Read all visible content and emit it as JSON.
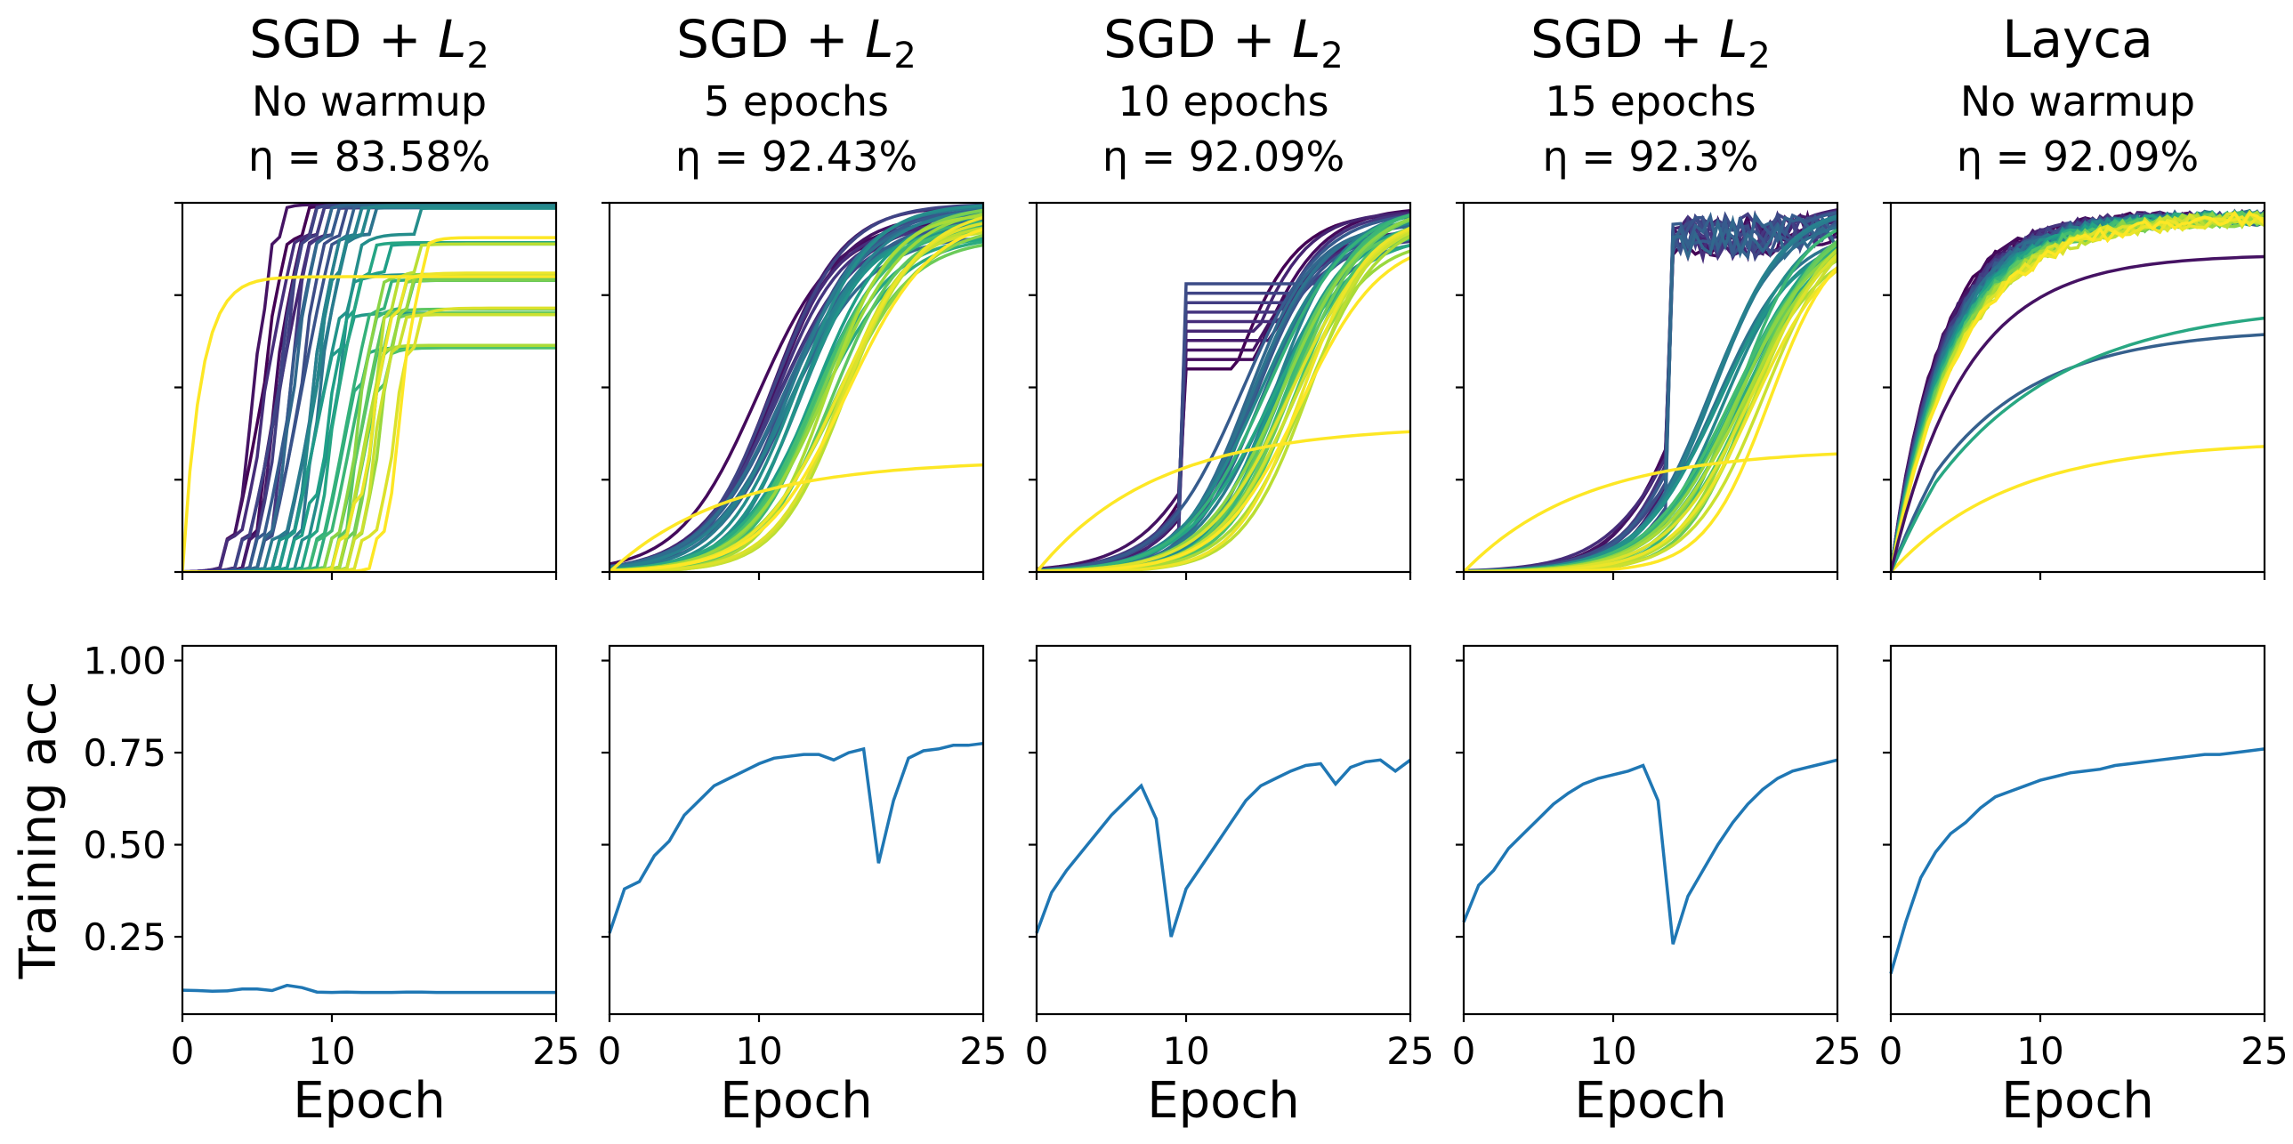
{
  "chart_data": {
    "type": "line",
    "layout": "2 rows x 5 columns",
    "shared_xlabel": "Epoch",
    "bottom_ylabel": "Training acc",
    "xlim": [
      0,
      25
    ],
    "xticks": [
      0,
      10,
      25
    ],
    "x_tick_labels": [
      "0",
      "10",
      "25"
    ],
    "bottom_ylim": [
      0.04,
      1.04
    ],
    "bottom_yticks": [
      0.25,
      0.5,
      0.75,
      1.0
    ],
    "bottom_ytick_labels": [
      "0.25",
      "0.50",
      "0.75",
      "1.00"
    ],
    "top_ylim": [
      0,
      1
    ],
    "top_row_note": "Top row: many per-layer curves colored with the viridis colormap (dark purple to yellow); no tick labels shown.",
    "top_ytick_positions": [
      0,
      0.25,
      0.5,
      0.75,
      1.0
    ],
    "panels": [
      {
        "title": "SGD + L2",
        "title_subscript": "2",
        "title_main": "SGD + L",
        "setting": "No warmup",
        "eta": "η = 83.58%",
        "training_acc": {
          "x": [
            0,
            1,
            2,
            3,
            4,
            5,
            6,
            7,
            8,
            9,
            10,
            11,
            12,
            13,
            14,
            15,
            16,
            17,
            18,
            19,
            20,
            21,
            22,
            23,
            24,
            25
          ],
          "y": [
            0.105,
            0.104,
            0.102,
            0.103,
            0.108,
            0.108,
            0.104,
            0.118,
            0.112,
            0.1,
            0.099,
            0.1,
            0.099,
            0.099,
            0.099,
            0.1,
            0.1,
            0.099,
            0.099,
            0.099,
            0.099,
            0.099,
            0.099,
            0.099,
            0.099,
            0.099
          ]
        }
      },
      {
        "title_main": "SGD + L",
        "title_subscript": "2",
        "setting": "5 epochs",
        "eta": "η = 92.43%",
        "training_acc": {
          "x": [
            0,
            1,
            2,
            3,
            4,
            5,
            6,
            7,
            8,
            9,
            10,
            11,
            12,
            13,
            14,
            15,
            16,
            17,
            18,
            19,
            20,
            21,
            22,
            23,
            24,
            25
          ],
          "y": [
            0.26,
            0.38,
            0.4,
            0.47,
            0.51,
            0.58,
            0.62,
            0.66,
            0.68,
            0.7,
            0.72,
            0.735,
            0.74,
            0.745,
            0.745,
            0.73,
            0.75,
            0.76,
            0.45,
            0.62,
            0.735,
            0.755,
            0.76,
            0.77,
            0.77,
            0.775
          ]
        }
      },
      {
        "title_main": "SGD + L",
        "title_subscript": "2",
        "setting": "10 epochs",
        "eta": "η = 92.09%",
        "training_acc": {
          "x": [
            0,
            1,
            2,
            3,
            4,
            5,
            6,
            7,
            8,
            9,
            10,
            11,
            12,
            13,
            14,
            15,
            16,
            17,
            18,
            19,
            20,
            21,
            22,
            23,
            24,
            25
          ],
          "y": [
            0.26,
            0.37,
            0.43,
            0.48,
            0.53,
            0.58,
            0.62,
            0.66,
            0.57,
            0.25,
            0.38,
            0.44,
            0.5,
            0.56,
            0.62,
            0.66,
            0.68,
            0.7,
            0.715,
            0.72,
            0.665,
            0.71,
            0.725,
            0.73,
            0.7,
            0.73
          ]
        }
      },
      {
        "title_main": "SGD + L",
        "title_subscript": "2",
        "setting": "15 epochs",
        "eta": "η = 92.3%",
        "training_acc": {
          "x": [
            0,
            1,
            2,
            3,
            4,
            5,
            6,
            7,
            8,
            9,
            10,
            11,
            12,
            13,
            14,
            15,
            16,
            17,
            18,
            19,
            20,
            21,
            22,
            23,
            24,
            25
          ],
          "y": [
            0.29,
            0.39,
            0.43,
            0.49,
            0.53,
            0.57,
            0.61,
            0.64,
            0.665,
            0.68,
            0.69,
            0.7,
            0.715,
            0.62,
            0.23,
            0.36,
            0.43,
            0.5,
            0.56,
            0.61,
            0.65,
            0.68,
            0.7,
            0.71,
            0.72,
            0.73
          ]
        }
      },
      {
        "title_main": "Layca",
        "title_subscript": "",
        "setting": "No warmup",
        "eta": "η = 92.09%",
        "training_acc": {
          "x": [
            0,
            1,
            2,
            3,
            4,
            5,
            6,
            7,
            8,
            9,
            10,
            11,
            12,
            13,
            14,
            15,
            16,
            17,
            18,
            19,
            20,
            21,
            22,
            23,
            24,
            25
          ],
          "y": [
            0.15,
            0.29,
            0.41,
            0.48,
            0.53,
            0.56,
            0.6,
            0.63,
            0.645,
            0.66,
            0.675,
            0.685,
            0.695,
            0.7,
            0.705,
            0.715,
            0.72,
            0.725,
            0.73,
            0.735,
            0.74,
            0.745,
            0.745,
            0.75,
            0.755,
            0.76
          ]
        }
      }
    ],
    "colors": {
      "training_line": "#1f77b4",
      "viridis": [
        "#440154",
        "#46327e",
        "#365c8d",
        "#277f8e",
        "#1fa187",
        "#4ac16d",
        "#a0da39",
        "#fde725"
      ]
    }
  }
}
